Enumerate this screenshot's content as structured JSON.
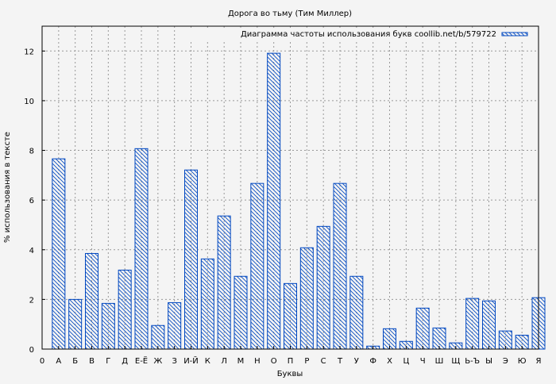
{
  "chart_data": {
    "type": "bar",
    "title": "Дорога во тьму (Тим Миллер)",
    "xlabel": "Буквы",
    "ylabel": "% использования в тексте",
    "legend": {
      "label": "Диаграмма частоты использования букв coollib.net/b/579722",
      "placement": "top-right"
    },
    "x_origin_label": "0",
    "categories": [
      "А",
      "Б",
      "В",
      "Г",
      "Д",
      "Е-Ё",
      "Ж",
      "З",
      "И-Й",
      "К",
      "Л",
      "М",
      "Н",
      "О",
      "П",
      "Р",
      "С",
      "Т",
      "У",
      "Ф",
      "Х",
      "Ц",
      "Ч",
      "Ш",
      "Щ",
      "Ь-Ъ",
      "Ы",
      "Э",
      "Ю",
      "Я"
    ],
    "values": [
      7.66,
      2.0,
      3.85,
      1.84,
      3.18,
      8.07,
      0.95,
      1.87,
      7.21,
      3.63,
      5.36,
      2.93,
      6.67,
      11.91,
      2.64,
      4.08,
      4.94,
      6.67,
      2.93,
      0.12,
      0.82,
      0.31,
      1.65,
      0.85,
      0.25,
      2.04,
      1.94,
      0.73,
      0.56,
      2.07
    ],
    "ylim": [
      0,
      13
    ],
    "yticks": [
      0,
      2,
      4,
      6,
      8,
      10,
      12
    ],
    "grid": true,
    "bar_color": "#0047c0",
    "background": "#f4f4f4"
  }
}
